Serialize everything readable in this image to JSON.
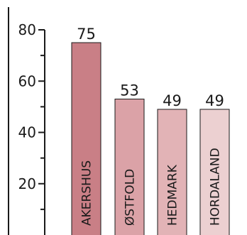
{
  "chart_data": {
    "type": "bar",
    "orientation": "vertical",
    "title": "",
    "xlabel": "",
    "ylabel": "",
    "categories": [
      "AKERSHUS",
      "ØSTFOLD",
      "HEDMARK",
      "HORDALAND"
    ],
    "values": [
      75,
      53,
      49,
      49
    ],
    "value_labels": [
      "75",
      "53",
      "49",
      "49"
    ],
    "ylim": [
      0,
      80
    ],
    "y_ticks": [
      20,
      40,
      60,
      80
    ],
    "y_tick_labels": [
      "20",
      "40",
      "60",
      "80"
    ],
    "y_minor_ticks": [
      10,
      30,
      50,
      70
    ],
    "grid": false,
    "legend": "none",
    "colors": {
      "bars": [
        "#c97f86",
        "#dba2a7",
        "#e2b3b6",
        "#ecd0d1"
      ],
      "bar_outline": "#1a1a1a",
      "axis": "#1a1a1a",
      "left_border": "#1a1a1a"
    }
  }
}
